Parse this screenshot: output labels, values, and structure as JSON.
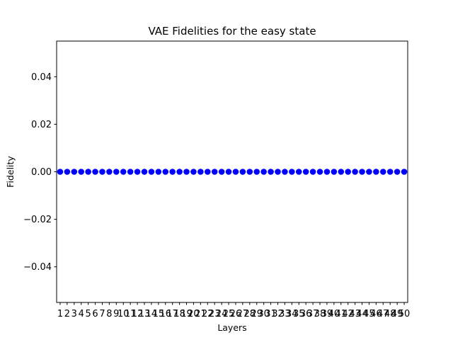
{
  "chart_data": {
    "type": "scatter",
    "title": "VAE Fidelities for the easy state",
    "xlabel": "Layers",
    "ylabel": "Fidelity",
    "x": [
      1,
      2,
      3,
      4,
      5,
      6,
      7,
      8,
      9,
      10,
      11,
      12,
      13,
      14,
      15,
      16,
      17,
      18,
      19,
      20,
      21,
      22,
      23,
      24,
      25,
      26,
      27,
      28,
      29,
      30,
      31,
      32,
      33,
      34,
      35,
      36,
      37,
      38,
      39,
      40,
      41,
      42,
      43,
      44,
      45,
      46,
      47,
      48,
      49,
      50
    ],
    "series": [
      {
        "values": [
          0,
          0,
          0,
          0,
          0,
          0,
          0,
          0,
          0,
          0,
          0,
          0,
          0,
          0,
          0,
          0,
          0,
          0,
          0,
          0,
          0,
          0,
          0,
          0,
          0,
          0,
          0,
          0,
          0,
          0,
          0,
          0,
          0,
          0,
          0,
          0,
          0,
          0,
          0,
          0,
          0,
          0,
          0,
          0,
          0,
          0,
          0,
          0,
          0,
          0
        ],
        "color": "#0000ff"
      }
    ],
    "xticks": [
      "1",
      "2",
      "3",
      "4",
      "5",
      "6",
      "7",
      "8",
      "9",
      "10",
      "11",
      "12",
      "13",
      "14",
      "15",
      "16",
      "17",
      "18",
      "19",
      "20",
      "21",
      "22",
      "23",
      "24",
      "25",
      "26",
      "27",
      "28",
      "29",
      "30",
      "31",
      "32",
      "33",
      "34",
      "35",
      "36",
      "37",
      "38",
      "39",
      "40",
      "41",
      "42",
      "43",
      "44",
      "45",
      "46",
      "47",
      "48",
      "49",
      "50"
    ],
    "yticks": [
      {
        "value": 0.04,
        "label": "0.04"
      },
      {
        "value": 0.02,
        "label": "0.02"
      },
      {
        "value": 0.0,
        "label": "0.00"
      },
      {
        "value": -0.02,
        "label": "−0.02"
      },
      {
        "value": -0.04,
        "label": "−0.04"
      }
    ],
    "xlim": [
      0.5,
      50.5
    ],
    "ylim": [
      -0.055,
      0.055
    ],
    "grid": false,
    "legend": "none"
  }
}
